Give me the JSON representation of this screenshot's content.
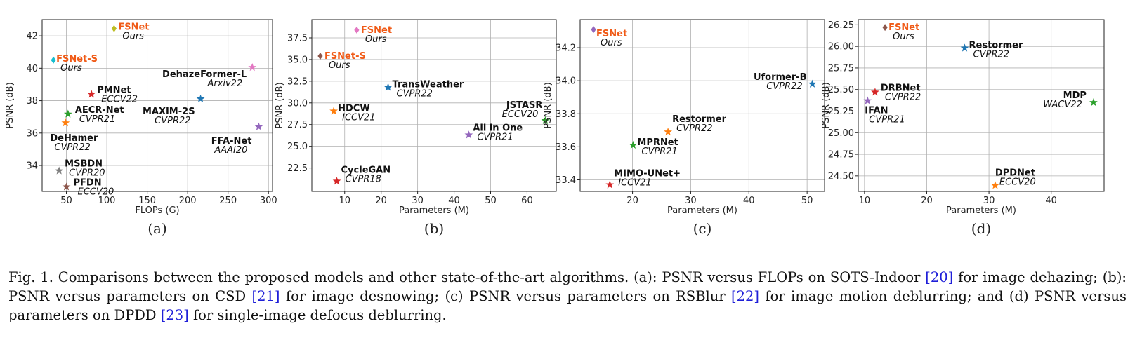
{
  "chart_data": [
    {
      "type": "scatter",
      "label": "(a)",
      "xlabel": "FLOPs (G)",
      "ylabel": "PSNR (dB)",
      "xlim": [
        20,
        305
      ],
      "ylim": [
        32.4,
        43.0
      ],
      "xticks": [
        50,
        100,
        150,
        200,
        250,
        300
      ],
      "yticks": [
        34,
        36,
        38,
        40,
        42
      ],
      "grid": true,
      "points": [
        {
          "name": "FSNet",
          "venue": "Ours",
          "x": 109,
          "y": 42.45,
          "marker": "diamond",
          "color": "#bcbd22",
          "highlight": true
        },
        {
          "name": "FSNet-S",
          "venue": "Ours",
          "x": 34,
          "y": 40.5,
          "marker": "diamond",
          "color": "#17becf",
          "highlight": true
        },
        {
          "name": "PMNet",
          "venue": "ECCV22",
          "x": 81,
          "y": 38.4,
          "marker": "star",
          "color": "#d62728"
        },
        {
          "name": "AECR-Net",
          "venue": "CVPR21",
          "x": 52,
          "y": 37.17,
          "marker": "star",
          "color": "#2ca02c"
        },
        {
          "name": "DeHamer",
          "venue": "CVPR22",
          "x": 49,
          "y": 36.63,
          "marker": "star",
          "color": "#ff7f0e"
        },
        {
          "name": "MSBDN",
          "venue": "CVPR20",
          "x": 41,
          "y": 33.67,
          "marker": "star",
          "color": "#7f7f7f"
        },
        {
          "name": "PFDN",
          "venue": "ECCV20",
          "x": 50,
          "y": 32.68,
          "marker": "star",
          "color": "#8c564b"
        },
        {
          "name": "DehazeFormer-L",
          "venue": "Arxiv22",
          "x": 280,
          "y": 40.05,
          "marker": "star",
          "color": "#e377c2"
        },
        {
          "name": "MAXIM-2S",
          "venue": "CVPR22",
          "x": 216,
          "y": 38.11,
          "marker": "star",
          "color": "#1f77b4"
        },
        {
          "name": "FFA-Net",
          "venue": "AAAI20",
          "x": 288,
          "y": 36.39,
          "marker": "star",
          "color": "#9467bd"
        }
      ]
    },
    {
      "type": "scatter",
      "label": "(b)",
      "xlabel": "Parameters (M)",
      "ylabel": "PSNR (dB)",
      "xlim": [
        1,
        68
      ],
      "ylim": [
        19.8,
        39.6
      ],
      "xticks": [
        10,
        20,
        30,
        40,
        50,
        60
      ],
      "yticks": [
        22.5,
        25.0,
        27.5,
        30.0,
        32.5,
        35.0,
        37.5
      ],
      "grid": true,
      "points": [
        {
          "name": "FSNet",
          "venue": "Ours",
          "x": 13.3,
          "y": 38.4,
          "marker": "diamond",
          "color": "#e377c2",
          "highlight": true
        },
        {
          "name": "FSNet-S",
          "venue": "Ours",
          "x": 3.3,
          "y": 35.4,
          "marker": "diamond",
          "color": "#8c564b",
          "highlight": true
        },
        {
          "name": "TransWeather",
          "venue": "CVPR22",
          "x": 21.9,
          "y": 31.8,
          "marker": "star",
          "color": "#1f77b4"
        },
        {
          "name": "HDCW",
          "venue": "ICCV21",
          "x": 6.99,
          "y": 29.06,
          "marker": "star",
          "color": "#ff7f0e"
        },
        {
          "name": "JSTASR",
          "venue": "ECCV20",
          "x": 65,
          "y": 27.96,
          "marker": "star",
          "color": "#2ca02c"
        },
        {
          "name": "All in One",
          "venue": "CVPR21",
          "x": 44,
          "y": 26.31,
          "marker": "star",
          "color": "#9467bd"
        },
        {
          "name": "CycleGAN",
          "venue": "CVPR18",
          "x": 7.84,
          "y": 20.98,
          "marker": "star",
          "color": "#d62728"
        }
      ]
    },
    {
      "type": "scatter",
      "label": "(c)",
      "xlabel": "Parameters (M)",
      "ylabel": "PSNR (dB)",
      "xlim": [
        11,
        53
      ],
      "ylim": [
        33.33,
        34.37
      ],
      "xticks": [
        20,
        30,
        40,
        50
      ],
      "yticks": [
        33.4,
        33.6,
        33.8,
        34.0,
        34.2
      ],
      "grid": true,
      "points": [
        {
          "name": "FSNet",
          "venue": "Ours",
          "x": 13.3,
          "y": 34.31,
          "marker": "diamond",
          "color": "#9467bd",
          "highlight": true
        },
        {
          "name": "Uformer-B",
          "venue": "CVPR22",
          "x": 50.9,
          "y": 33.98,
          "marker": "star",
          "color": "#1f77b4"
        },
        {
          "name": "Restormer",
          "venue": "CVPR22",
          "x": 26.1,
          "y": 33.69,
          "marker": "star",
          "color": "#ff7f0e"
        },
        {
          "name": "MPRNet",
          "venue": "CVPR21",
          "x": 20.1,
          "y": 33.61,
          "marker": "star",
          "color": "#2ca02c"
        },
        {
          "name": "MIMO-UNet+",
          "venue": "ICCV21",
          "x": 16.1,
          "y": 33.37,
          "marker": "star",
          "color": "#d62728"
        }
      ]
    },
    {
      "type": "scatter",
      "label": "(d)",
      "xlabel": "Parameters (M)",
      "ylabel": "PSNR (dB)",
      "xlim": [
        9,
        48.5
      ],
      "ylim": [
        24.32,
        26.31
      ],
      "xticks": [
        10,
        20,
        30,
        40
      ],
      "yticks": [
        24.5,
        24.75,
        25.0,
        25.25,
        25.5,
        25.75,
        26.0,
        26.25
      ],
      "grid": true,
      "points": [
        {
          "name": "FSNet",
          "venue": "Ours",
          "x": 13.3,
          "y": 26.22,
          "marker": "diamond",
          "color": "#8c564b",
          "highlight": true
        },
        {
          "name": "Restormer",
          "venue": "CVPR22",
          "x": 26.1,
          "y": 25.98,
          "marker": "star",
          "color": "#1f77b4"
        },
        {
          "name": "DRBNet",
          "venue": "CVPR22",
          "x": 11.7,
          "y": 25.47,
          "marker": "star",
          "color": "#d62728"
        },
        {
          "name": "IFAN",
          "venue": "CVPR21",
          "x": 10.5,
          "y": 25.37,
          "marker": "star",
          "color": "#9467bd"
        },
        {
          "name": "MDP",
          "venue": "WACV22",
          "x": 46.8,
          "y": 25.35,
          "marker": "star",
          "color": "#2ca02c"
        },
        {
          "name": "DPDNet",
          "venue": "ECCV20",
          "x": 31,
          "y": 24.39,
          "marker": "star",
          "color": "#ff7f0e"
        }
      ]
    }
  ],
  "caption": {
    "segments": [
      {
        "text": "Fig. 1.    Comparisons between the proposed models and other state-of-the-art algorithms. (a): PSNR versus FLOPs on SOTS-Indoor ",
        "ref": false
      },
      {
        "text": "[20]",
        "ref": true
      },
      {
        "text": " for image dehazing; (b): PSNR versus parameters on CSD ",
        "ref": false
      },
      {
        "text": "[21]",
        "ref": true
      },
      {
        "text": " for image desnowing; (c) PSNR versus parameters on RSBlur ",
        "ref": false
      },
      {
        "text": "[22]",
        "ref": true
      },
      {
        "text": " for image motion deblurring; and (d) PSNR versus parameters on DPDD ",
        "ref": false
      },
      {
        "text": "[23]",
        "ref": true
      },
      {
        "text": " for single-image defocus deblurring.",
        "ref": false
      }
    ]
  }
}
